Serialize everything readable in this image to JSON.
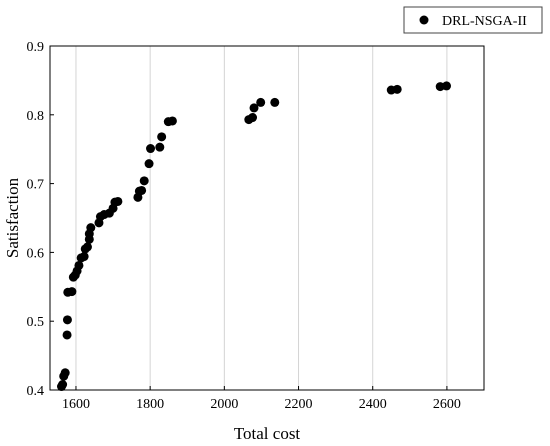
{
  "chart_data": {
    "type": "scatter",
    "xlabel": "Total cost",
    "ylabel": "Satisfaction",
    "xlim": [
      1530,
      2700
    ],
    "ylim": [
      0.4,
      0.9
    ],
    "xticks": [
      "1600",
      "1800",
      "2000",
      "2200",
      "2400",
      "2600"
    ],
    "yticks": [
      "0.4",
      "0.5",
      "0.6",
      "0.7",
      "0.8",
      "0.9"
    ],
    "grid": "vertical-only",
    "legend_position": "top-right-outside",
    "marker_color": "#000000",
    "series": [
      {
        "name": "DRL-NSGA-II",
        "points": [
          [
            1561,
            0.405
          ],
          [
            1564,
            0.408
          ],
          [
            1567,
            0.42
          ],
          [
            1571,
            0.425
          ],
          [
            1576,
            0.48
          ],
          [
            1577,
            0.502
          ],
          [
            1578,
            0.542
          ],
          [
            1589,
            0.543
          ],
          [
            1593,
            0.564
          ],
          [
            1598,
            0.567
          ],
          [
            1603,
            0.573
          ],
          [
            1608,
            0.581
          ],
          [
            1614,
            0.592
          ],
          [
            1622,
            0.594
          ],
          [
            1625,
            0.605
          ],
          [
            1631,
            0.608
          ],
          [
            1636,
            0.619
          ],
          [
            1636,
            0.627
          ],
          [
            1640,
            0.636
          ],
          [
            1662,
            0.643
          ],
          [
            1666,
            0.652
          ],
          [
            1676,
            0.655
          ],
          [
            1690,
            0.657
          ],
          [
            1700,
            0.664
          ],
          [
            1705,
            0.673
          ],
          [
            1713,
            0.674
          ],
          [
            1767,
            0.68
          ],
          [
            1771,
            0.689
          ],
          [
            1777,
            0.69
          ],
          [
            1784,
            0.704
          ],
          [
            1797,
            0.729
          ],
          [
            1801,
            0.751
          ],
          [
            1826,
            0.753
          ],
          [
            1831,
            0.768
          ],
          [
            1849,
            0.79
          ],
          [
            1860,
            0.791
          ],
          [
            2066,
            0.793
          ],
          [
            2076,
            0.796
          ],
          [
            2080,
            0.81
          ],
          [
            2098,
            0.818
          ],
          [
            2136,
            0.818
          ],
          [
            2450,
            0.836
          ],
          [
            2466,
            0.837
          ],
          [
            2582,
            0.841
          ],
          [
            2599,
            0.842
          ]
        ]
      }
    ]
  }
}
